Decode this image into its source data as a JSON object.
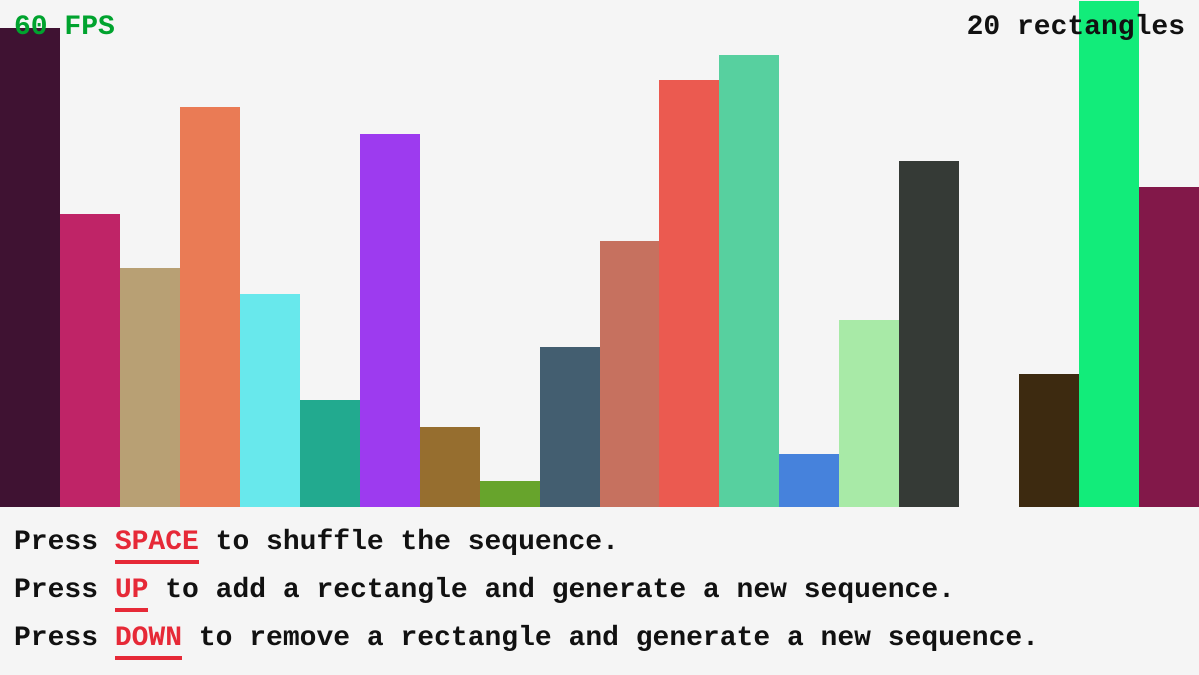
{
  "fps_label": "60 FPS",
  "count_label": "20 rectangles",
  "accent_color": "#e62937",
  "fps_color": "#00a32e",
  "rectangles": [
    {
      "value": 479,
      "color": "#3f1232"
    },
    {
      "value": 293,
      "color": "#bf2467"
    },
    {
      "value": 239,
      "color": "#b8a074"
    },
    {
      "value": 400,
      "color": "#ea7b55"
    },
    {
      "value": 213,
      "color": "#68e8ec"
    },
    {
      "value": 107,
      "color": "#22aa8f"
    },
    {
      "value": 373,
      "color": "#9d3bef"
    },
    {
      "value": 80,
      "color": "#966e2f"
    },
    {
      "value": 26,
      "color": "#67a42c"
    },
    {
      "value": 160,
      "color": "#435e70"
    },
    {
      "value": 266,
      "color": "#c6715f"
    },
    {
      "value": 427,
      "color": "#eb5a50"
    },
    {
      "value": 452,
      "color": "#57d09f"
    },
    {
      "value": 53,
      "color": "#4682dc"
    },
    {
      "value": 187,
      "color": "#a8eaa7"
    },
    {
      "value": 346,
      "color": "#353a36"
    },
    {
      "value": 0,
      "color": "#f5f5f5"
    },
    {
      "value": 133,
      "color": "#3d2a10"
    },
    {
      "value": 506,
      "color": "#12ec7a"
    },
    {
      "value": 320,
      "color": "#821849"
    }
  ],
  "instructions": [
    {
      "pre": "Press ",
      "key": "SPACE",
      "post": " to shuffle the sequence."
    },
    {
      "pre": "Press ",
      "key": "UP",
      "post": " to add a rectangle and generate a new sequence."
    },
    {
      "pre": "Press ",
      "key": "DOWN",
      "post": " to remove a rectangle and generate a new sequence."
    }
  ]
}
